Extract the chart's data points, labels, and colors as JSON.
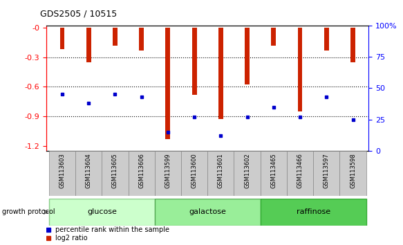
{
  "title": "GDS2505 / 10515",
  "samples": [
    "GSM113603",
    "GSM113604",
    "GSM113605",
    "GSM113606",
    "GSM113599",
    "GSM113600",
    "GSM113601",
    "GSM113602",
    "GSM113465",
    "GSM113466",
    "GSM113597",
    "GSM113598"
  ],
  "log2_ratio": [
    -0.22,
    -0.35,
    -0.18,
    -0.23,
    -1.13,
    -0.68,
    -0.93,
    -0.58,
    -0.18,
    -0.85,
    -0.23,
    -0.35
  ],
  "percentile_rank": [
    45,
    38,
    45,
    43,
    15,
    27,
    12,
    27,
    35,
    27,
    43,
    25
  ],
  "groups": [
    {
      "label": "glucose",
      "start": 0,
      "end": 4,
      "color": "#ccffcc",
      "edgecolor": "#88cc88"
    },
    {
      "label": "galactose",
      "start": 4,
      "end": 8,
      "color": "#99ee99",
      "edgecolor": "#55aa55"
    },
    {
      "label": "raffinose",
      "start": 8,
      "end": 12,
      "color": "#55cc55",
      "edgecolor": "#33aa33"
    }
  ],
  "ylim_left": [
    -1.25,
    0.02
  ],
  "ylim_right": [
    0,
    100
  ],
  "yticks_left": [
    0,
    -0.3,
    -0.6,
    -0.9,
    -1.2
  ],
  "yticks_right": [
    0,
    25,
    50,
    75,
    100
  ],
  "bar_color": "#cc2200",
  "dot_color": "#0000cc",
  "background_color": "#ffffff"
}
